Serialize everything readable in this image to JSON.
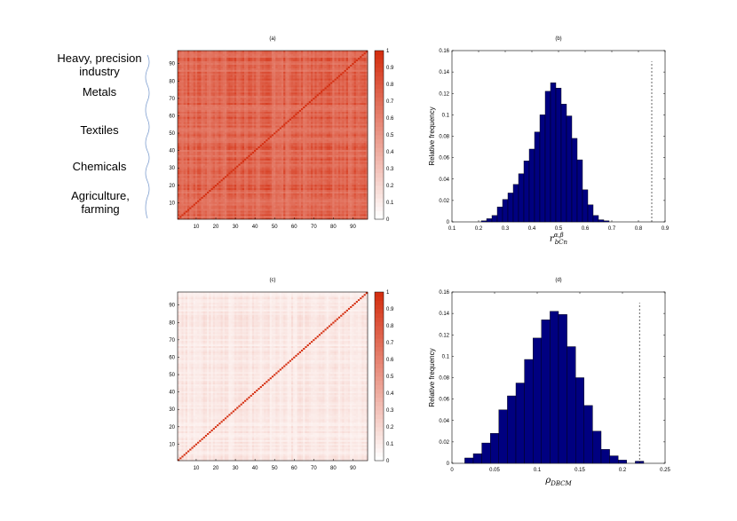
{
  "sector_labels": [
    {
      "text": "Heavy, precision industry"
    },
    {
      "text": "Metals"
    },
    {
      "text": "Textiles"
    },
    {
      "text": "Chemicals"
    },
    {
      "text": "Agriculture, farming"
    }
  ],
  "chart_data": [
    {
      "id": "a",
      "type": "heatmap",
      "title": "(a)",
      "xlim": [
        1,
        97
      ],
      "ylim": [
        1,
        97
      ],
      "xticks": [
        10,
        20,
        30,
        40,
        50,
        60,
        70,
        80,
        90
      ],
      "yticks": [
        10,
        20,
        30,
        40,
        50,
        60,
        70,
        80,
        90
      ],
      "colorbar": {
        "range": [
          0,
          1
        ],
        "ticks": [
          "0",
          "0.1",
          "0.2",
          "0.3",
          "0.4",
          "0.5",
          "0.6",
          "0.7",
          "0.8",
          "0.9",
          "1"
        ]
      },
      "value_range": [
        0.6,
        0.95
      ],
      "base_color": "#e9705a",
      "colormap": [
        "#ffffff",
        "#d42f11"
      ]
    },
    {
      "id": "b",
      "type": "bar",
      "title": "(b)",
      "ylabel": "Relative frequency",
      "xlabel": "r_{bCn}^{α,β}",
      "xlim": [
        0.1,
        0.9
      ],
      "ylim": [
        0,
        0.16
      ],
      "xticks": [
        "0.1",
        "0.2",
        "0.3",
        "0.4",
        "0.5",
        "0.6",
        "0.7",
        "0.8",
        "0.9"
      ],
      "yticks": [
        "0",
        "0.02",
        "0.04",
        "0.06",
        "0.08",
        "0.1",
        "0.12",
        "0.14",
        "0.16"
      ],
      "bar_width": 0.02,
      "x": [
        0.22,
        0.24,
        0.26,
        0.28,
        0.3,
        0.32,
        0.34,
        0.36,
        0.38,
        0.4,
        0.42,
        0.44,
        0.46,
        0.48,
        0.5,
        0.52,
        0.54,
        0.56,
        0.58,
        0.6,
        0.62,
        0.64,
        0.66,
        0.68
      ],
      "values": [
        0.001,
        0.003,
        0.006,
        0.014,
        0.021,
        0.027,
        0.035,
        0.045,
        0.057,
        0.068,
        0.084,
        0.1,
        0.122,
        0.13,
        0.125,
        0.11,
        0.099,
        0.078,
        0.058,
        0.03,
        0.016,
        0.006,
        0.002,
        0.001
      ],
      "reference_line": {
        "x": 0.85,
        "y_top": 0.15
      },
      "bar_color": "#000080"
    },
    {
      "id": "c",
      "type": "heatmap",
      "title": "(c)",
      "xlim": [
        1,
        97
      ],
      "ylim": [
        1,
        97
      ],
      "xticks": [
        10,
        20,
        30,
        40,
        50,
        60,
        70,
        80,
        90
      ],
      "yticks": [
        10,
        20,
        30,
        40,
        50,
        60,
        70,
        80,
        90
      ],
      "colorbar": {
        "range": [
          0,
          1
        ],
        "ticks": [
          "0",
          "0.1",
          "0.2",
          "0.3",
          "0.4",
          "0.5",
          "0.6",
          "0.7",
          "0.8",
          "0.9",
          "1"
        ]
      },
      "value_range": [
        0.05,
        0.2
      ],
      "base_color": "#fbe0d8",
      "colormap": [
        "#ffffff",
        "#d42f11"
      ]
    },
    {
      "id": "d",
      "type": "bar",
      "title": "(d)",
      "ylabel": "Relative frequency",
      "xlabel": "ρ_{DBCM}",
      "xlim": [
        0,
        0.25
      ],
      "ylim": [
        0,
        0.16
      ],
      "xticks": [
        "0",
        "0.05",
        "0.1",
        "0.15",
        "0.2",
        "0.25"
      ],
      "yticks": [
        "0",
        "0.02",
        "0.04",
        "0.06",
        "0.08",
        "0.1",
        "0.12",
        "0.14",
        "0.16"
      ],
      "bar_width": 0.01,
      "x": [
        0.02,
        0.03,
        0.04,
        0.05,
        0.06,
        0.07,
        0.08,
        0.09,
        0.1,
        0.11,
        0.12,
        0.13,
        0.14,
        0.15,
        0.16,
        0.17,
        0.18,
        0.19,
        0.2,
        0.22
      ],
      "values": [
        0.005,
        0.009,
        0.019,
        0.028,
        0.05,
        0.063,
        0.075,
        0.097,
        0.117,
        0.134,
        0.142,
        0.139,
        0.109,
        0.08,
        0.054,
        0.03,
        0.013,
        0.007,
        0.003,
        0.002
      ],
      "reference_line": {
        "x": 0.22,
        "y_top": 0.15
      },
      "bar_color": "#000080"
    }
  ]
}
